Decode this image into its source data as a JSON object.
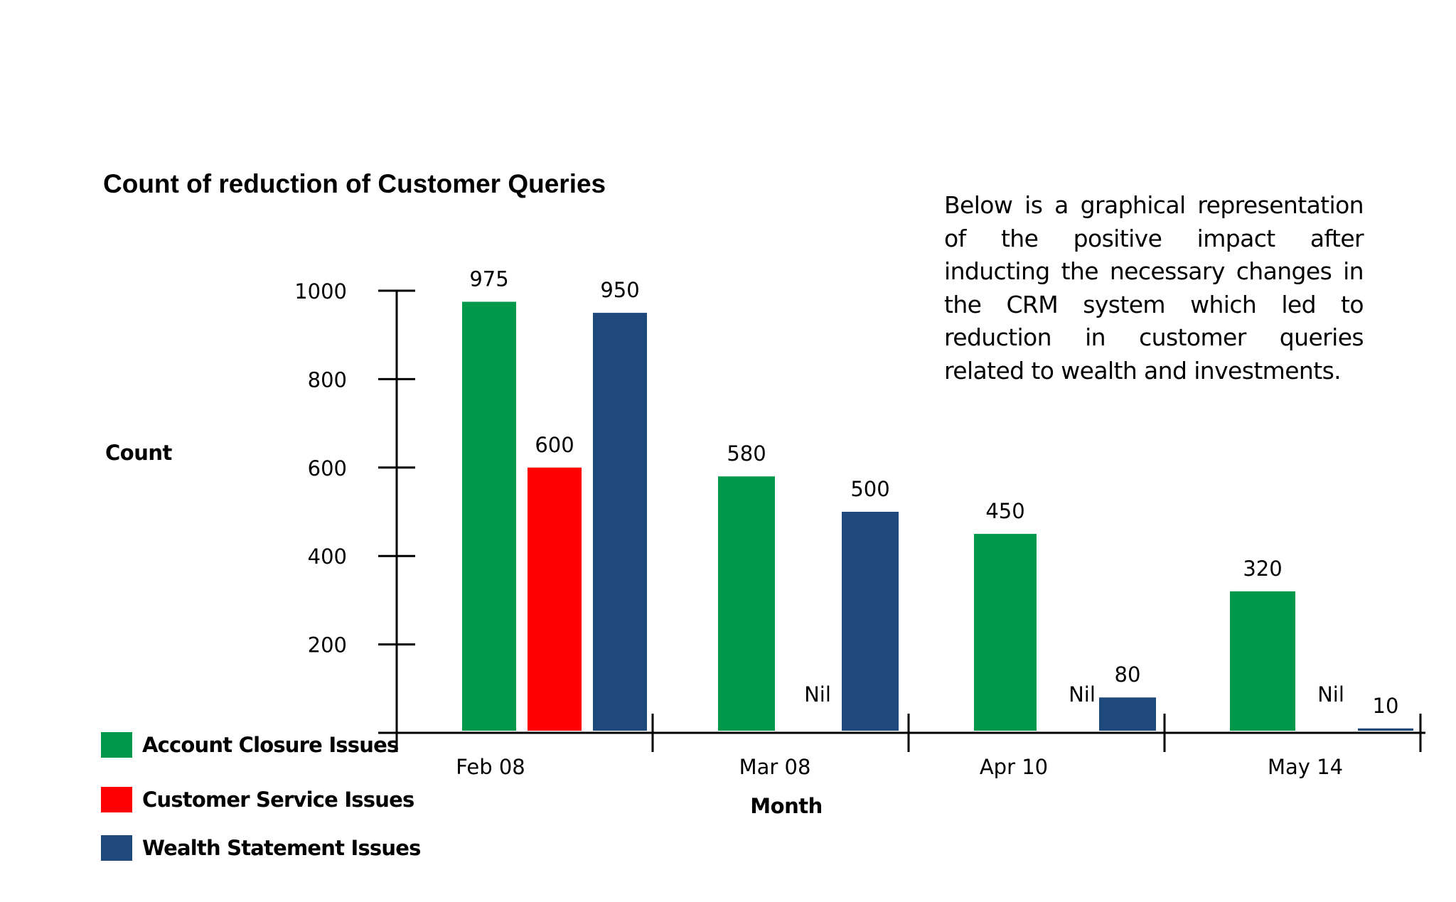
{
  "chart_data": {
    "type": "bar",
    "title": "Count of reduction of Customer Queries",
    "xlabel": "Month",
    "ylabel": "Count",
    "categories": [
      "Feb 08",
      "Mar 08",
      "Apr 10",
      "May 14"
    ],
    "y_ticks": [
      "200",
      "400",
      "600",
      "800",
      "1000"
    ],
    "ylim": [
      0,
      1000
    ],
    "grid": false,
    "legend_position": "bottom-left",
    "series": [
      {
        "name": "Account Closure Issues",
        "color": "#00994C",
        "values": [
          975,
          580,
          450,
          320
        ],
        "labels": [
          "975",
          "580",
          "450",
          "320"
        ]
      },
      {
        "name": "Customer Service Issues",
        "color": "#FF0000",
        "values": [
          600,
          0,
          0,
          0
        ],
        "labels": [
          "600",
          "Nil",
          "Nil",
          "Nil"
        ]
      },
      {
        "name": "Wealth Statement Issues",
        "color": "#1F497D",
        "values": [
          950,
          500,
          80,
          10
        ],
        "labels": [
          "950",
          "500",
          "80",
          "10"
        ]
      }
    ]
  },
  "description": "Below is a graphical representation of the positive impact after inducting the necessary changes in the CRM system which led to reduction in customer queries related to wealth and investments."
}
